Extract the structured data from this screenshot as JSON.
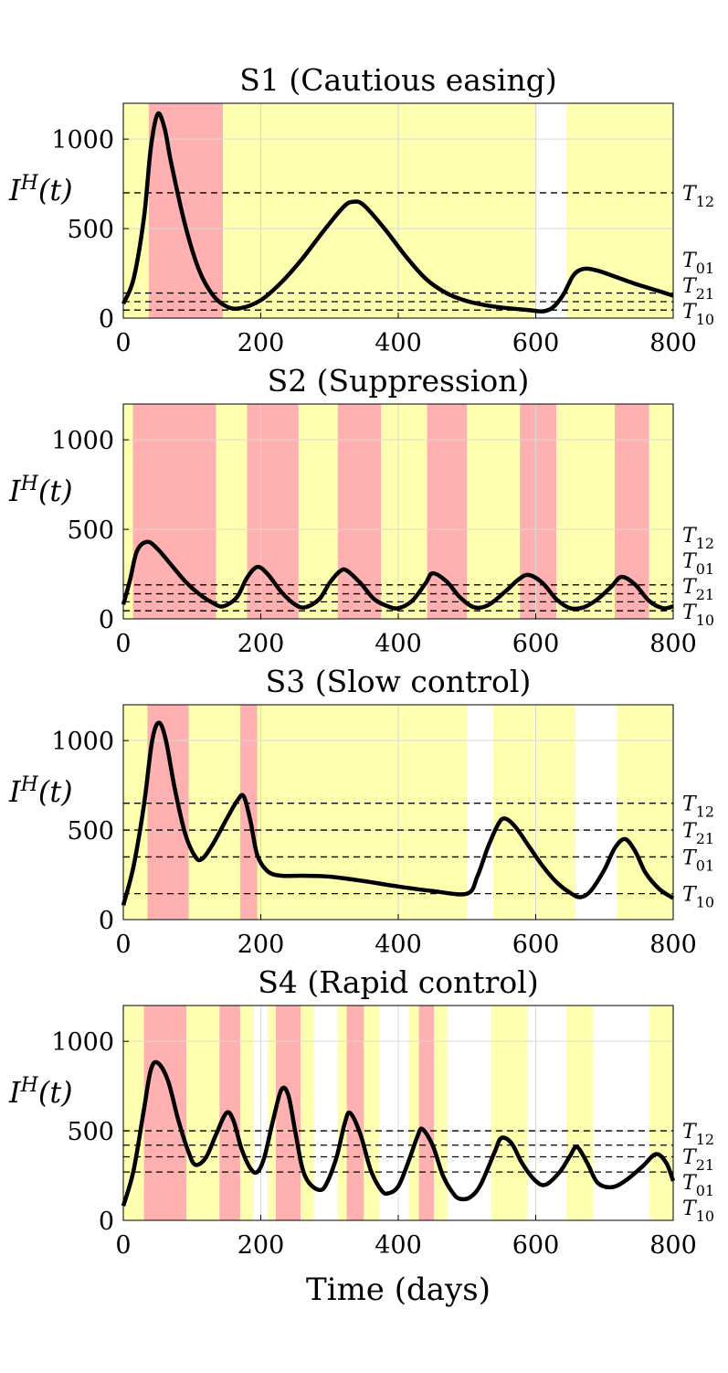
{
  "colors": {
    "red": "#ffb0b0",
    "yellow": "#ffffb0",
    "curve": "#000000",
    "threshold": "#000000",
    "grid": "#d9d9d9"
  },
  "chart_data": [
    {
      "type": "line",
      "title": "S1 (Cautious easing)",
      "ylabel": "I^H(t)",
      "xlim": [
        0,
        800
      ],
      "ylim": [
        0,
        1200
      ],
      "xticks": [
        "0",
        "200",
        "400",
        "600",
        "800"
      ],
      "yticks": [
        "0",
        "500",
        "1000"
      ],
      "grid": true,
      "bands": [
        {
          "from": 0,
          "to": 37,
          "level": "yellow"
        },
        {
          "from": 37,
          "to": 145,
          "level": "red"
        },
        {
          "from": 145,
          "to": 602,
          "level": "yellow"
        },
        {
          "from": 602,
          "to": 645,
          "level": "white"
        },
        {
          "from": 645,
          "to": 800,
          "level": "yellow"
        }
      ],
      "thresholds": [
        {
          "label": "T12",
          "value": 700
        },
        {
          "label": "T01",
          "value": 140
        },
        {
          "label": "T21",
          "value": 92
        },
        {
          "label": "T10",
          "value": 45
        }
      ],
      "series": [
        {
          "x": [
            0,
            15,
            30,
            40,
            50,
            60,
            70,
            90,
            110,
            130,
            150,
            170,
            200,
            230,
            260,
            290,
            320,
            335,
            350,
            380,
            410,
            440,
            470,
            500,
            530,
            560,
            590,
            610,
            625,
            640,
            655,
            670,
            690,
            720,
            750,
            780,
            800
          ],
          "y": [
            80,
            220,
            560,
            950,
            1140,
            1060,
            860,
            520,
            270,
            130,
            65,
            55,
            100,
            200,
            330,
            480,
            620,
            650,
            630,
            500,
            350,
            220,
            140,
            95,
            70,
            55,
            45,
            38,
            60,
            130,
            240,
            275,
            265,
            225,
            185,
            150,
            125
          ]
        }
      ]
    },
    {
      "type": "line",
      "title": "S2 (Suppression)",
      "ylabel": "I^H(t)",
      "xlim": [
        0,
        800
      ],
      "ylim": [
        0,
        1200
      ],
      "xticks": [
        "0",
        "200",
        "400",
        "600",
        "800"
      ],
      "yticks": [
        "0",
        "500",
        "1000"
      ],
      "grid": true,
      "bands": [
        {
          "from": 0,
          "to": 14,
          "level": "yellow"
        },
        {
          "from": 14,
          "to": 135,
          "level": "red"
        },
        {
          "from": 135,
          "to": 180,
          "level": "yellow"
        },
        {
          "from": 180,
          "to": 255,
          "level": "red"
        },
        {
          "from": 255,
          "to": 312,
          "level": "yellow"
        },
        {
          "from": 312,
          "to": 375,
          "level": "red"
        },
        {
          "from": 375,
          "to": 442,
          "level": "yellow"
        },
        {
          "from": 442,
          "to": 500,
          "level": "red"
        },
        {
          "from": 500,
          "to": 577,
          "level": "yellow"
        },
        {
          "from": 577,
          "to": 630,
          "level": "red"
        },
        {
          "from": 630,
          "to": 715,
          "level": "yellow"
        },
        {
          "from": 715,
          "to": 765,
          "level": "red"
        },
        {
          "from": 765,
          "to": 800,
          "level": "yellow"
        }
      ],
      "thresholds": [
        {
          "label": "T12",
          "value": 190
        },
        {
          "label": "T01",
          "value": 140
        },
        {
          "label": "T21",
          "value": 95
        },
        {
          "label": "T10",
          "value": 45
        }
      ],
      "series": [
        {
          "x": [
            0,
            10,
            20,
            35,
            50,
            70,
            90,
            110,
            130,
            145,
            165,
            180,
            195,
            210,
            230,
            250,
            265,
            285,
            300,
            315,
            325,
            345,
            365,
            385,
            400,
            420,
            440,
            450,
            470,
            490,
            510,
            530,
            555,
            575,
            590,
            610,
            630,
            650,
            670,
            690,
            710,
            725,
            745,
            765,
            785,
            800
          ],
          "y": [
            80,
            220,
            380,
            430,
            390,
            300,
            210,
            140,
            90,
            70,
            120,
            230,
            290,
            250,
            150,
            80,
            65,
            110,
            200,
            265,
            270,
            200,
            110,
            70,
            60,
            100,
            200,
            255,
            210,
            120,
            65,
            75,
            150,
            220,
            245,
            200,
            110,
            60,
            65,
            110,
            180,
            235,
            190,
            100,
            60,
            70
          ]
        }
      ]
    },
    {
      "type": "line",
      "title": "S3 (Slow control)",
      "ylabel": "I^H(t)",
      "xlim": [
        0,
        800
      ],
      "ylim": [
        0,
        1200
      ],
      "xticks": [
        "0",
        "200",
        "400",
        "600",
        "800"
      ],
      "yticks": [
        "0",
        "500",
        "1000"
      ],
      "grid": true,
      "bands": [
        {
          "from": 0,
          "to": 35,
          "level": "yellow"
        },
        {
          "from": 35,
          "to": 95,
          "level": "red"
        },
        {
          "from": 95,
          "to": 170,
          "level": "yellow"
        },
        {
          "from": 170,
          "to": 195,
          "level": "red"
        },
        {
          "from": 195,
          "to": 500,
          "level": "yellow"
        },
        {
          "from": 500,
          "to": 538,
          "level": "white"
        },
        {
          "from": 538,
          "to": 658,
          "level": "yellow"
        },
        {
          "from": 658,
          "to": 718,
          "level": "white"
        },
        {
          "from": 718,
          "to": 800,
          "level": "yellow"
        }
      ],
      "thresholds": [
        {
          "label": "T12",
          "value": 650
        },
        {
          "label": "T21",
          "value": 500
        },
        {
          "label": "T01",
          "value": 350
        },
        {
          "label": "T10",
          "value": 145
        }
      ],
      "series": [
        {
          "x": [
            0,
            15,
            30,
            42,
            52,
            62,
            75,
            90,
            105,
            115,
            130,
            150,
            165,
            175,
            185,
            195,
            210,
            230,
            260,
            300,
            350,
            400,
            450,
            500,
            515,
            530,
            545,
            555,
            570,
            590,
            610,
            630,
            650,
            665,
            680,
            700,
            715,
            730,
            745,
            760,
            780,
            800
          ],
          "y": [
            80,
            300,
            640,
            1000,
            1100,
            1000,
            730,
            480,
            350,
            340,
            420,
            560,
            660,
            690,
            550,
            360,
            270,
            245,
            245,
            240,
            215,
            185,
            160,
            145,
            240,
            400,
            530,
            565,
            520,
            410,
            300,
            210,
            150,
            125,
            160,
            280,
            400,
            450,
            380,
            260,
            170,
            120
          ]
        }
      ]
    },
    {
      "type": "line",
      "title": "S4 (Rapid control)",
      "ylabel": "I^H(t)",
      "xlabel": "Time (days)",
      "xlim": [
        0,
        800
      ],
      "ylim": [
        0,
        1200
      ],
      "xticks": [
        "0",
        "200",
        "400",
        "600",
        "800"
      ],
      "yticks": [
        "0",
        "500",
        "1000"
      ],
      "grid": true,
      "bands": [
        {
          "from": 0,
          "to": 30,
          "level": "yellow"
        },
        {
          "from": 30,
          "to": 92,
          "level": "red"
        },
        {
          "from": 92,
          "to": 140,
          "level": "yellow"
        },
        {
          "from": 140,
          "to": 170,
          "level": "red"
        },
        {
          "from": 170,
          "to": 190,
          "level": "yellow"
        },
        {
          "from": 190,
          "to": 210,
          "level": "white"
        },
        {
          "from": 210,
          "to": 222,
          "level": "yellow"
        },
        {
          "from": 222,
          "to": 258,
          "level": "red"
        },
        {
          "from": 258,
          "to": 278,
          "level": "yellow"
        },
        {
          "from": 278,
          "to": 312,
          "level": "white"
        },
        {
          "from": 312,
          "to": 325,
          "level": "yellow"
        },
        {
          "from": 325,
          "to": 350,
          "level": "red"
        },
        {
          "from": 350,
          "to": 372,
          "level": "yellow"
        },
        {
          "from": 372,
          "to": 415,
          "level": "white"
        },
        {
          "from": 415,
          "to": 430,
          "level": "yellow"
        },
        {
          "from": 430,
          "to": 452,
          "level": "red"
        },
        {
          "from": 452,
          "to": 472,
          "level": "yellow"
        },
        {
          "from": 472,
          "to": 535,
          "level": "white"
        },
        {
          "from": 535,
          "to": 588,
          "level": "yellow"
        },
        {
          "from": 588,
          "to": 645,
          "level": "white"
        },
        {
          "from": 645,
          "to": 683,
          "level": "yellow"
        },
        {
          "from": 683,
          "to": 765,
          "level": "white"
        },
        {
          "from": 765,
          "to": 800,
          "level": "yellow"
        }
      ],
      "thresholds": [
        {
          "label": "T12",
          "value": 500
        },
        {
          "label": "T21",
          "value": 420
        },
        {
          "label": "T01",
          "value": 355
        },
        {
          "label": "T10",
          "value": 270
        }
      ],
      "series": [
        {
          "x": [
            0,
            15,
            30,
            40,
            50,
            65,
            80,
            95,
            105,
            120,
            135,
            150,
            160,
            172,
            185,
            195,
            205,
            218,
            230,
            240,
            250,
            260,
            270,
            285,
            295,
            310,
            322,
            330,
            345,
            360,
            375,
            385,
            400,
            415,
            428,
            435,
            450,
            465,
            480,
            490,
            505,
            520,
            540,
            550,
            565,
            580,
            600,
            615,
            635,
            650,
            660,
            675,
            690,
            710,
            730,
            755,
            775,
            790,
            800
          ],
          "y": [
            80,
            280,
            620,
            840,
            880,
            780,
            560,
            380,
            310,
            350,
            480,
            600,
            560,
            400,
            290,
            270,
            350,
            560,
            730,
            700,
            500,
            300,
            210,
            170,
            200,
            350,
            540,
            600,
            480,
            280,
            170,
            150,
            190,
            330,
            470,
            510,
            420,
            250,
            150,
            120,
            130,
            200,
            380,
            460,
            430,
            320,
            220,
            200,
            270,
            360,
            410,
            320,
            210,
            185,
            220,
            300,
            370,
            320,
            220
          ]
        }
      ]
    }
  ]
}
